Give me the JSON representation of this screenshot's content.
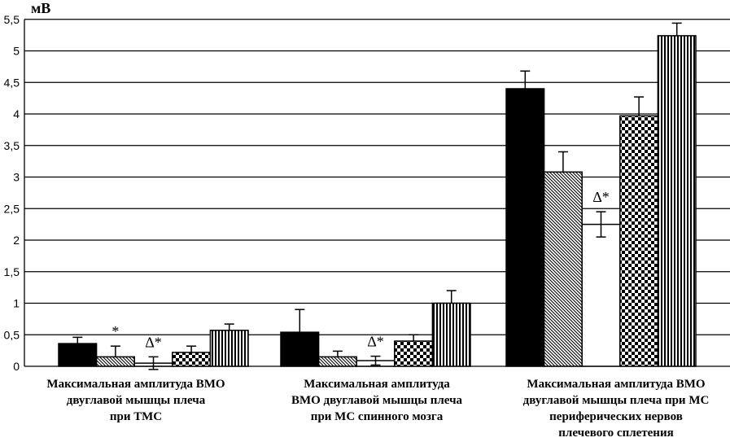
{
  "chart_data": {
    "type": "bar",
    "ylabel": "мВ",
    "ylim": [
      0,
      5.5
    ],
    "yticks": [
      "0",
      "0,5",
      "1",
      "1,5",
      "2",
      "2,5",
      "3",
      "3,5",
      "4",
      "4,5",
      "5",
      "5,5"
    ],
    "grid": true,
    "categories": [
      [
        "Максимальная амплитуда ВМО",
        "двуглавой мышцы плеча",
        "при ТМС"
      ],
      [
        "Максимальная амплитуда",
        "ВМО двуглавой мышцы плеча",
        "при МС спинного мозга"
      ],
      [
        "Максимальная амплитуда ВМО",
        "двуглавой мышцы плеча при МС",
        "периферических нервов",
        "плечевого сплетения"
      ]
    ],
    "series": [
      {
        "name": "solid-black",
        "values": [
          0.36,
          0.54,
          4.4
        ],
        "errors": [
          0.1,
          0.36,
          0.28
        ]
      },
      {
        "name": "diagonal-hatch",
        "values": [
          0.15,
          0.15,
          3.08
        ],
        "errors": [
          0.17,
          0.09,
          0.32
        ]
      },
      {
        "name": "white",
        "values": [
          0.05,
          0.09,
          2.25
        ],
        "errors": [
          0.1,
          0.07,
          0.2
        ]
      },
      {
        "name": "checker",
        "values": [
          0.22,
          0.4,
          3.97
        ],
        "errors": [
          0.1,
          0.1,
          0.3
        ]
      },
      {
        "name": "vertical-stripes",
        "values": [
          0.57,
          1.0,
          5.24
        ],
        "errors": [
          0.1,
          0.2,
          0.2
        ]
      }
    ],
    "annotations": [
      {
        "category": 0,
        "series": 1,
        "text": "*"
      },
      {
        "category": 0,
        "series": 2,
        "text": "Δ*"
      },
      {
        "category": 1,
        "series": 2,
        "text": "Δ*"
      },
      {
        "category": 2,
        "series": 2,
        "text": "Δ*"
      }
    ]
  }
}
